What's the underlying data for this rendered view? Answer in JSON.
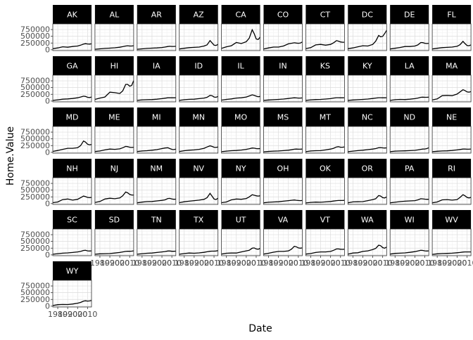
{
  "chart_data": {
    "type": "line",
    "facet": "small-multiples by state",
    "xlabel": "Date",
    "ylabel": "Home.Value",
    "x_ticks": [
      1980,
      1990,
      2000,
      2010
    ],
    "y_ticks": [
      0,
      250000,
      500000,
      750000
    ],
    "y_tick_labels": [
      "0",
      "250000",
      "500000",
      "750000"
    ],
    "xlim": [
      1975,
      2014
    ],
    "ylim": [
      -30000,
      960000
    ],
    "x": [
      1975,
      1980,
      1985,
      1990,
      1995,
      2000,
      2003,
      2006,
      2008,
      2010,
      2012,
      2014
    ],
    "grid": true,
    "theme": "black strip headers, white panels with light grey grid",
    "series": [
      {
        "name": "AK",
        "values": [
          40000,
          70000,
          110000,
          95000,
          120000,
          140000,
          170000,
          210000,
          225000,
          215000,
          210000,
          220000
        ]
      },
      {
        "name": "AL",
        "values": [
          20000,
          35000,
          50000,
          60000,
          75000,
          95000,
          115000,
          140000,
          150000,
          140000,
          140000,
          150000
        ]
      },
      {
        "name": "AR",
        "values": [
          20000,
          35000,
          50000,
          60000,
          70000,
          85000,
          100000,
          120000,
          130000,
          125000,
          125000,
          130000
        ]
      },
      {
        "name": "AZ",
        "values": [
          30000,
          55000,
          80000,
          90000,
          100000,
          140000,
          180000,
          340000,
          260000,
          170000,
          160000,
          200000
        ]
      },
      {
        "name": "CA",
        "values": [
          50000,
          110000,
          150000,
          270000,
          230000,
          300000,
          430000,
          740000,
          600000,
          400000,
          380000,
          470000
        ]
      },
      {
        "name": "CO",
        "values": [
          30000,
          70000,
          100000,
          100000,
          140000,
          220000,
          240000,
          260000,
          250000,
          240000,
          250000,
          290000
        ]
      },
      {
        "name": "CT",
        "values": [
          40000,
          80000,
          180000,
          200000,
          170000,
          200000,
          260000,
          340000,
          320000,
          290000,
          280000,
          280000
        ]
      },
      {
        "name": "DC",
        "values": [
          40000,
          70000,
          110000,
          150000,
          140000,
          200000,
          320000,
          530000,
          480000,
          500000,
          600000,
          720000
        ]
      },
      {
        "name": "DE",
        "values": [
          30000,
          55000,
          85000,
          120000,
          120000,
          140000,
          180000,
          270000,
          265000,
          240000,
          230000,
          240000
        ]
      },
      {
        "name": "FL",
        "values": [
          30000,
          55000,
          80000,
          90000,
          100000,
          130000,
          190000,
          310000,
          230000,
          160000,
          150000,
          180000
        ]
      },
      {
        "name": "GA",
        "values": [
          25000,
          45000,
          70000,
          80000,
          95000,
          120000,
          150000,
          180000,
          170000,
          140000,
          130000,
          150000
        ]
      },
      {
        "name": "HI",
        "values": [
          60000,
          110000,
          150000,
          330000,
          310000,
          280000,
          380000,
          620000,
          620000,
          550000,
          580000,
          760000
        ]
      },
      {
        "name": "IA",
        "values": [
          25000,
          45000,
          50000,
          55000,
          70000,
          90000,
          105000,
          120000,
          125000,
          120000,
          120000,
          125000
        ]
      },
      {
        "name": "ID",
        "values": [
          25000,
          50000,
          65000,
          70000,
          90000,
          110000,
          140000,
          210000,
          200000,
          150000,
          140000,
          170000
        ]
      },
      {
        "name": "IL",
        "values": [
          35000,
          60000,
          80000,
          110000,
          120000,
          150000,
          190000,
          230000,
          210000,
          180000,
          160000,
          170000
        ]
      },
      {
        "name": "IN",
        "values": [
          25000,
          40000,
          50000,
          60000,
          75000,
          95000,
          110000,
          120000,
          115000,
          110000,
          110000,
          115000
        ]
      },
      {
        "name": "KS",
        "values": [
          25000,
          45000,
          55000,
          60000,
          75000,
          90000,
          110000,
          125000,
          125000,
          120000,
          120000,
          125000
        ]
      },
      {
        "name": "KY",
        "values": [
          25000,
          40000,
          50000,
          60000,
          75000,
          95000,
          110000,
          125000,
          125000,
          120000,
          120000,
          125000
        ]
      },
      {
        "name": "LA",
        "values": [
          25000,
          50000,
          60000,
          55000,
          70000,
          90000,
          110000,
          140000,
          145000,
          140000,
          140000,
          145000
        ]
      },
      {
        "name": "MA",
        "values": [
          40000,
          80000,
          200000,
          210000,
          200000,
          260000,
          340000,
          420000,
          390000,
          340000,
          330000,
          350000
        ]
      },
      {
        "name": "MD",
        "values": [
          35000,
          70000,
          110000,
          150000,
          150000,
          170000,
          250000,
          420000,
          380000,
          300000,
          280000,
          290000
        ]
      },
      {
        "name": "ME",
        "values": [
          30000,
          50000,
          90000,
          120000,
          110000,
          130000,
          170000,
          220000,
          210000,
          190000,
          180000,
          190000
        ]
      },
      {
        "name": "MI",
        "values": [
          30000,
          50000,
          60000,
          80000,
          100000,
          140000,
          160000,
          170000,
          140000,
          110000,
          100000,
          120000
        ]
      },
      {
        "name": "MN",
        "values": [
          30000,
          60000,
          80000,
          90000,
          110000,
          150000,
          200000,
          240000,
          220000,
          190000,
          180000,
          200000
        ]
      },
      {
        "name": "MO",
        "values": [
          25000,
          45000,
          60000,
          70000,
          85000,
          110000,
          135000,
          160000,
          155000,
          140000,
          135000,
          140000
        ]
      },
      {
        "name": "MS",
        "values": [
          20000,
          35000,
          45000,
          50000,
          65000,
          80000,
          95000,
          115000,
          120000,
          115000,
          115000,
          120000
        ]
      },
      {
        "name": "MT",
        "values": [
          25000,
          50000,
          60000,
          65000,
          90000,
          120000,
          150000,
          200000,
          210000,
          190000,
          190000,
          200000
        ]
      },
      {
        "name": "NC",
        "values": [
          25000,
          45000,
          65000,
          80000,
          100000,
          120000,
          140000,
          170000,
          175000,
          165000,
          160000,
          165000
        ]
      },
      {
        "name": "ND",
        "values": [
          25000,
          45000,
          50000,
          55000,
          65000,
          75000,
          90000,
          110000,
          120000,
          125000,
          140000,
          170000
        ]
      },
      {
        "name": "NE",
        "values": [
          25000,
          40000,
          50000,
          55000,
          70000,
          90000,
          105000,
          120000,
          120000,
          115000,
          115000,
          125000
        ]
      },
      {
        "name": "NH",
        "values": [
          35000,
          60000,
          150000,
          170000,
          130000,
          160000,
          220000,
          280000,
          260000,
          230000,
          220000,
          230000
        ]
      },
      {
        "name": "NJ",
        "values": [
          40000,
          80000,
          170000,
          200000,
          180000,
          210000,
          290000,
          430000,
          400000,
          340000,
          320000,
          320000
        ]
      },
      {
        "name": "NM",
        "values": [
          30000,
          55000,
          75000,
          80000,
          100000,
          120000,
          140000,
          190000,
          195000,
          170000,
          160000,
          165000
        ]
      },
      {
        "name": "NV",
        "values": [
          35000,
          70000,
          90000,
          110000,
          130000,
          160000,
          220000,
          380000,
          280000,
          170000,
          150000,
          200000
        ]
      },
      {
        "name": "NY",
        "values": [
          35000,
          60000,
          140000,
          170000,
          160000,
          190000,
          250000,
          330000,
          310000,
          290000,
          280000,
          290000
        ]
      },
      {
        "name": "OH",
        "values": [
          30000,
          50000,
          60000,
          70000,
          90000,
          110000,
          125000,
          135000,
          125000,
          115000,
          110000,
          115000
        ]
      },
      {
        "name": "OK",
        "values": [
          25000,
          45000,
          55000,
          50000,
          65000,
          80000,
          95000,
          110000,
          115000,
          115000,
          115000,
          120000
        ]
      },
      {
        "name": "OR",
        "values": [
          30000,
          65000,
          70000,
          75000,
          110000,
          150000,
          180000,
          300000,
          280000,
          220000,
          210000,
          250000
        ]
      },
      {
        "name": "PA",
        "values": [
          30000,
          50000,
          75000,
          90000,
          100000,
          110000,
          140000,
          180000,
          175000,
          165000,
          160000,
          160000
        ]
      },
      {
        "name": "RI",
        "values": [
          30000,
          60000,
          140000,
          150000,
          130000,
          150000,
          230000,
          330000,
          290000,
          230000,
          210000,
          230000
        ]
      },
      {
        "name": "SC",
        "values": [
          25000,
          45000,
          65000,
          75000,
          90000,
          110000,
          130000,
          165000,
          170000,
          150000,
          145000,
          150000
        ]
      },
      {
        "name": "SD",
        "values": [
          25000,
          40000,
          45000,
          50000,
          70000,
          90000,
          110000,
          130000,
          135000,
          135000,
          140000,
          150000
        ]
      },
      {
        "name": "TN",
        "values": [
          25000,
          45000,
          60000,
          70000,
          90000,
          110000,
          125000,
          145000,
          145000,
          135000,
          135000,
          140000
        ]
      },
      {
        "name": "TX",
        "values": [
          25000,
          50000,
          70000,
          60000,
          75000,
          95000,
          115000,
          135000,
          140000,
          140000,
          145000,
          160000
        ]
      },
      {
        "name": "UT",
        "values": [
          30000,
          60000,
          70000,
          70000,
          110000,
          150000,
          170000,
          250000,
          260000,
          220000,
          210000,
          240000
        ]
      },
      {
        "name": "VA",
        "values": [
          30000,
          60000,
          100000,
          130000,
          130000,
          150000,
          210000,
          320000,
          300000,
          260000,
          250000,
          260000
        ]
      },
      {
        "name": "VT",
        "values": [
          30000,
          50000,
          90000,
          110000,
          110000,
          130000,
          170000,
          220000,
          220000,
          210000,
          205000,
          210000
        ]
      },
      {
        "name": "WA",
        "values": [
          30000,
          70000,
          80000,
          130000,
          150000,
          200000,
          240000,
          360000,
          340000,
          270000,
          250000,
          290000
        ]
      },
      {
        "name": "WI",
        "values": [
          30000,
          55000,
          65000,
          75000,
          95000,
          120000,
          145000,
          170000,
          165000,
          150000,
          145000,
          150000
        ]
      },
      {
        "name": "WV",
        "values": [
          20000,
          40000,
          50000,
          55000,
          65000,
          80000,
          90000,
          105000,
          110000,
          110000,
          110000,
          110000
        ]
      },
      {
        "name": "WY",
        "values": [
          25000,
          55000,
          65000,
          60000,
          80000,
          110000,
          140000,
          190000,
          200000,
          190000,
          195000,
          210000
        ]
      }
    ]
  }
}
